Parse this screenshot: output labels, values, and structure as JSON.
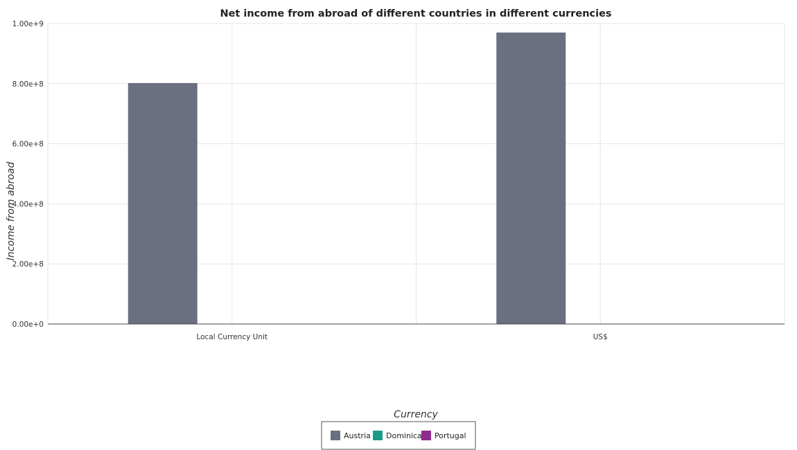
{
  "chart_data": {
    "type": "bar",
    "title": "Net income from abroad of different countries in different currencies",
    "xlabel": "Currency",
    "ylabel": "Income from abroad",
    "categories": [
      "Local Currency Unit",
      "US$"
    ],
    "series": [
      {
        "name": "Austria",
        "values": [
          802000000,
          970000000
        ],
        "color": "#6b7080"
      },
      {
        "name": "Dominica",
        "values": [
          0,
          0
        ],
        "color": "#1a9a8a"
      },
      {
        "name": "Portugal",
        "values": [
          0,
          0
        ],
        "color": "#8e2c8e"
      }
    ],
    "ylim": [
      0,
      1000000000
    ],
    "yticks": [
      0,
      200000000,
      400000000,
      600000000,
      800000000,
      1000000000
    ],
    "ytick_labels": [
      "0.00e+0",
      "2.00e+8",
      "4.00e+8",
      "6.00e+8",
      "8.00e+8",
      "1.00e+9"
    ],
    "grid": true,
    "legend_position": "bottom-center"
  }
}
